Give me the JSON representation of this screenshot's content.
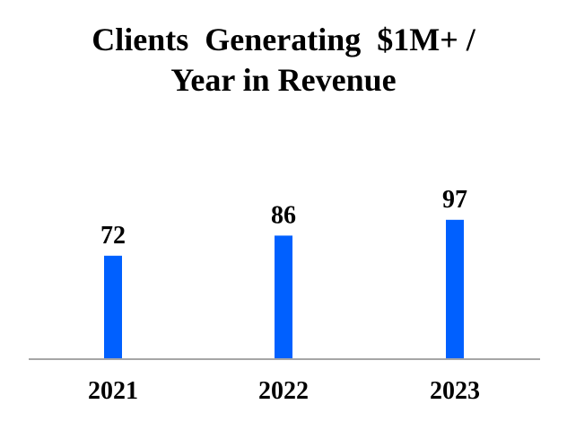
{
  "chart_data": {
    "type": "bar",
    "title_lines": [
      "Clients  Generating  $1M+ /",
      "Year in Revenue"
    ],
    "categories": [
      "2021",
      "2022",
      "2023"
    ],
    "values": [
      72,
      86,
      97
    ],
    "xlabel": "",
    "ylabel": "",
    "ylim": [
      0,
      200
    ],
    "grid": false,
    "bar_color": "#0060FF",
    "axis_color": "#A6A6A6"
  }
}
